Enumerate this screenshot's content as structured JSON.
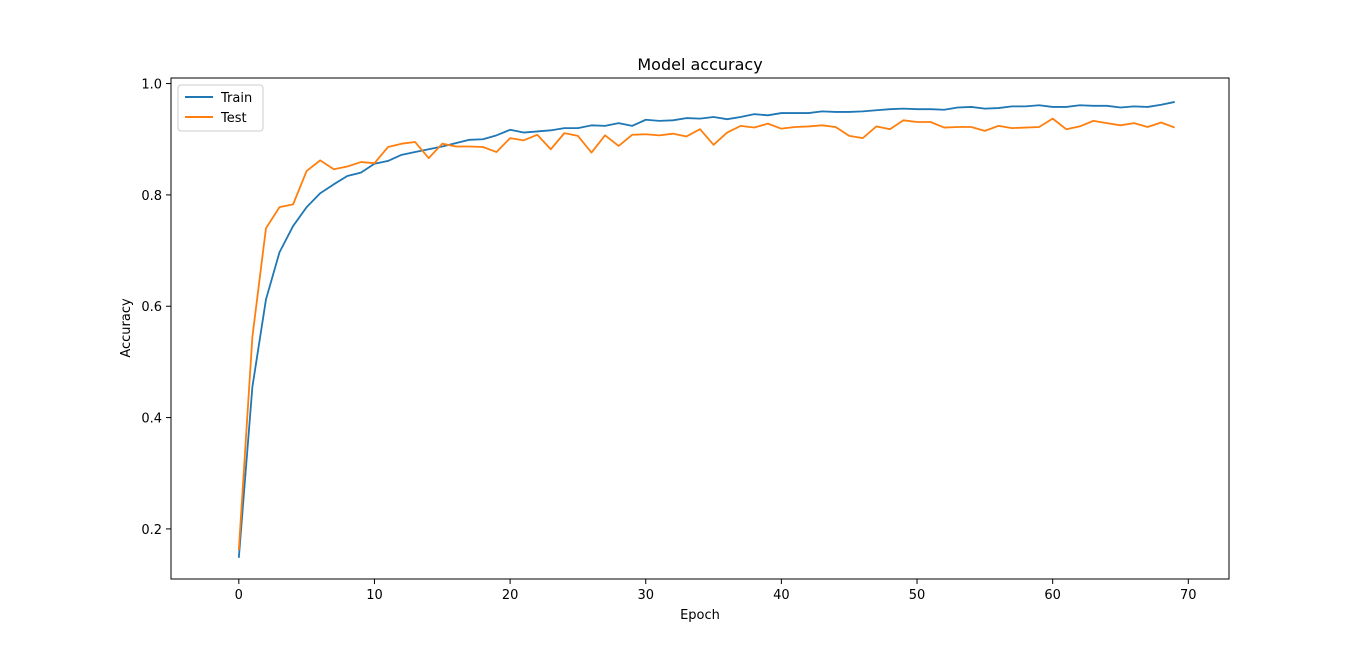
{
  "chart_data": {
    "type": "line",
    "title": "Model accuracy",
    "xlabel": "Epoch",
    "ylabel": "Accuracy",
    "xlim": [
      -5,
      73
    ],
    "ylim": [
      0.11,
      1.01
    ],
    "xticks": [
      0,
      10,
      20,
      30,
      40,
      50,
      60,
      70
    ],
    "yticks": [
      0.2,
      0.4,
      0.6,
      0.8,
      1.0
    ],
    "ytick_labels": [
      "0.2",
      "0.4",
      "0.6",
      "0.8",
      "1.0"
    ],
    "grid": false,
    "legend_position": "top-left",
    "series": [
      {
        "name": "Train",
        "color": "#1f77b4",
        "values": [
          0.148,
          0.455,
          0.612,
          0.697,
          0.744,
          0.778,
          0.803,
          0.819,
          0.834,
          0.84,
          0.856,
          0.861,
          0.872,
          0.877,
          0.882,
          0.887,
          0.893,
          0.899,
          0.9,
          0.907,
          0.917,
          0.912,
          0.914,
          0.916,
          0.92,
          0.92,
          0.925,
          0.924,
          0.929,
          0.924,
          0.935,
          0.933,
          0.934,
          0.938,
          0.937,
          0.94,
          0.936,
          0.94,
          0.945,
          0.943,
          0.947,
          0.947,
          0.947,
          0.95,
          0.949,
          0.949,
          0.95,
          0.952,
          0.954,
          0.955,
          0.954,
          0.954,
          0.953,
          0.957,
          0.958,
          0.955,
          0.956,
          0.959,
          0.959,
          0.961,
          0.958,
          0.958,
          0.961,
          0.96,
          0.96,
          0.957,
          0.959,
          0.958,
          0.962,
          0.967
        ]
      },
      {
        "name": "Test",
        "color": "#ff7f0e",
        "values": [
          0.162,
          0.545,
          0.74,
          0.778,
          0.783,
          0.843,
          0.862,
          0.846,
          0.851,
          0.859,
          0.857,
          0.886,
          0.892,
          0.895,
          0.866,
          0.892,
          0.887,
          0.887,
          0.886,
          0.877,
          0.902,
          0.898,
          0.908,
          0.882,
          0.911,
          0.906,
          0.876,
          0.907,
          0.888,
          0.908,
          0.909,
          0.907,
          0.91,
          0.905,
          0.918,
          0.89,
          0.912,
          0.924,
          0.921,
          0.928,
          0.919,
          0.922,
          0.923,
          0.925,
          0.922,
          0.906,
          0.902,
          0.923,
          0.918,
          0.934,
          0.931,
          0.931,
          0.921,
          0.922,
          0.922,
          0.915,
          0.924,
          0.92,
          0.921,
          0.922,
          0.937,
          0.918,
          0.923,
          0.933,
          0.929,
          0.925,
          0.929,
          0.922,
          0.93,
          0.921
        ]
      }
    ]
  }
}
